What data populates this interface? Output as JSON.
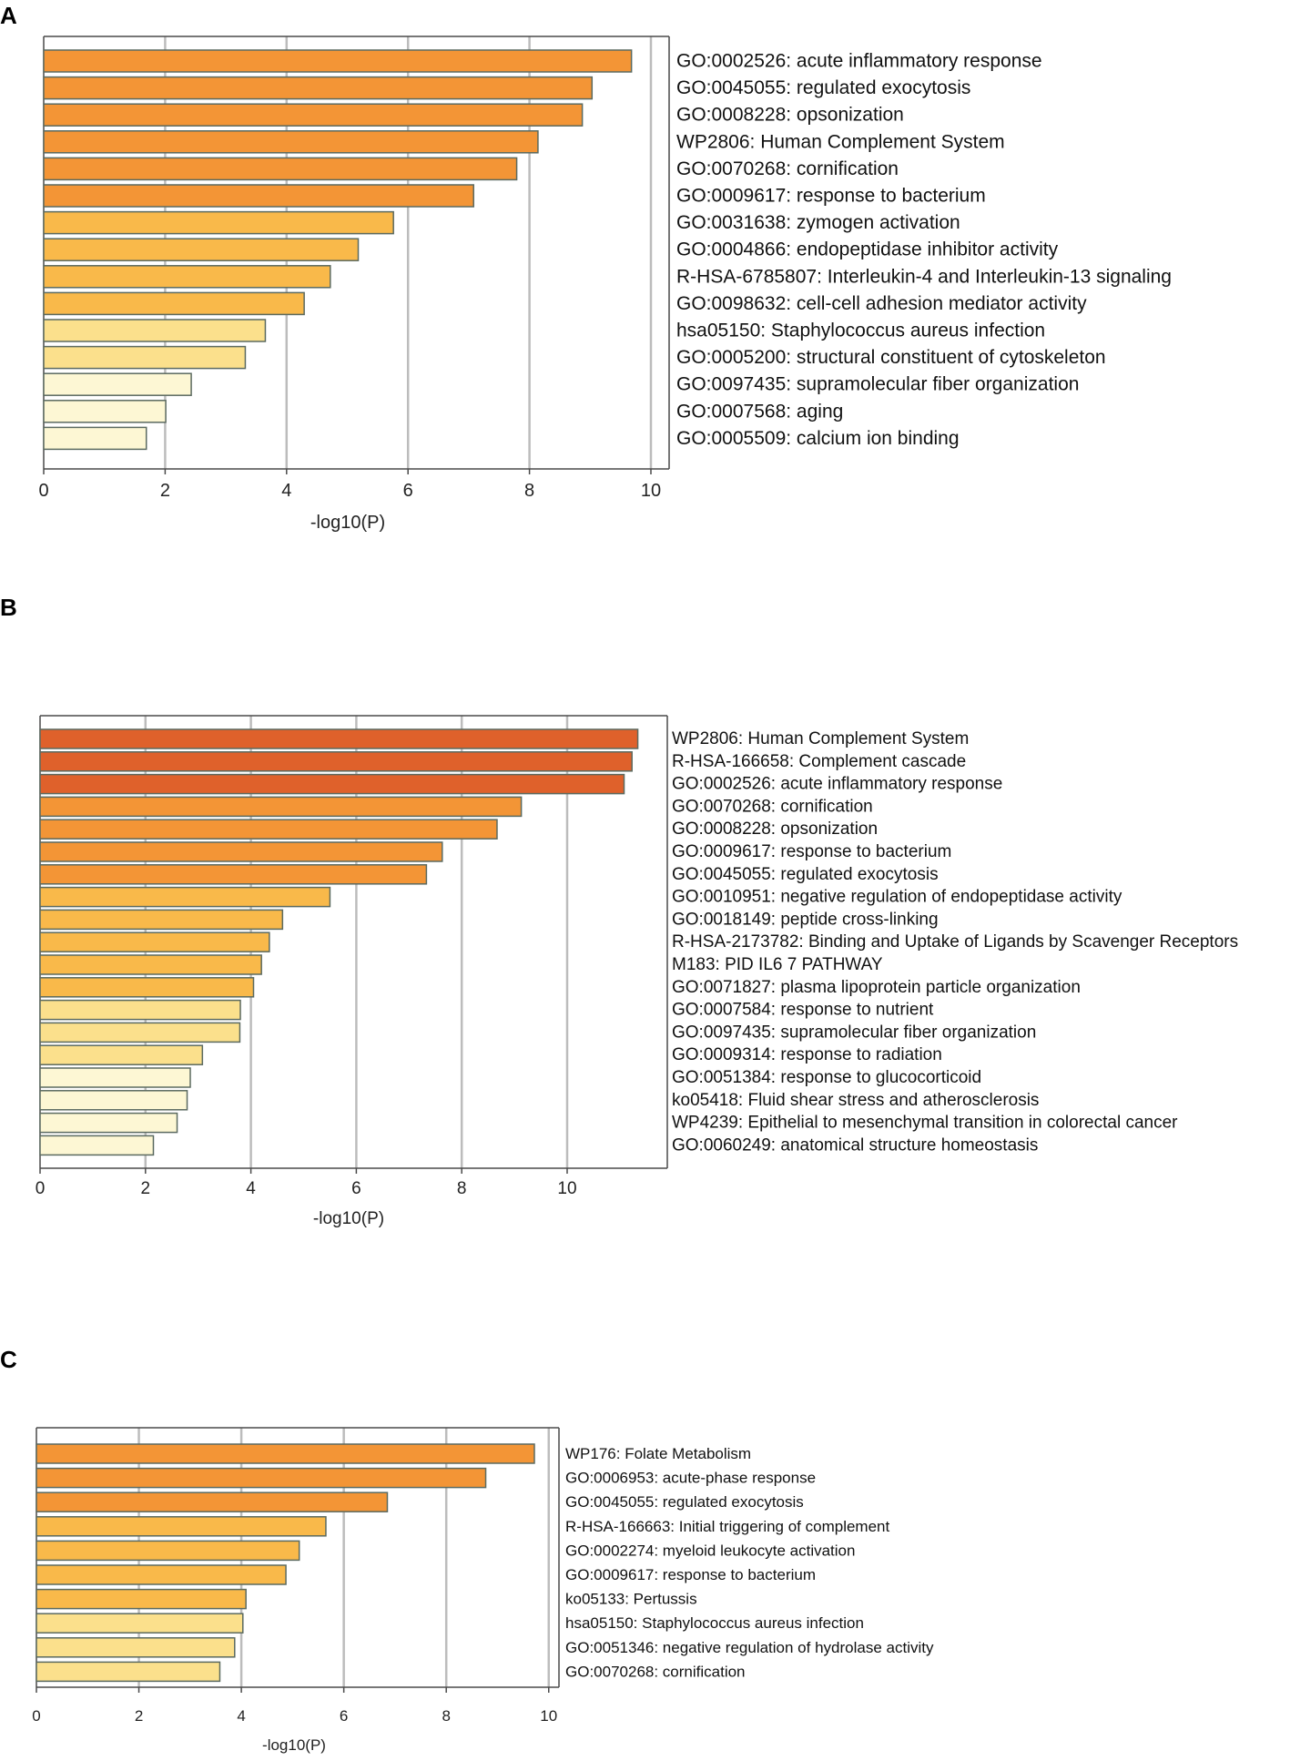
{
  "chart_data": [
    {
      "panel": "A",
      "type": "bar",
      "orientation": "horizontal",
      "xlabel": "-log10(P)",
      "xlim": [
        0,
        10.3
      ],
      "xticks": [
        0,
        2,
        4,
        6,
        8,
        10
      ],
      "grid": true,
      "categories": [
        "GO:0002526: acute inflammatory response",
        "GO:0045055: regulated exocytosis",
        "GO:0008228: opsonization",
        "WP2806: Human Complement System",
        "GO:0070268: cornification",
        "GO:0009617: response to bacterium",
        "GO:0031638: zymogen activation",
        "GO:0004866: endopeptidase inhibitor activity",
        "R-HSA-6785807: Interleukin-4 and Interleukin-13 signaling",
        "GO:0098632: cell-cell adhesion mediator activity",
        "hsa05150: Staphylococcus aureus infection",
        "GO:0005200: structural constituent of cytoskeleton",
        "GO:0097435: supramolecular fiber organization",
        "GO:0007568: aging",
        "GO:0005509: calcium ion binding"
      ],
      "values": [
        9.68,
        9.03,
        8.87,
        8.14,
        7.79,
        7.08,
        5.76,
        5.18,
        4.72,
        4.29,
        3.65,
        3.32,
        2.43,
        2.01,
        1.69
      ],
      "colors": [
        "#f39536",
        "#f39536",
        "#f39536",
        "#f39536",
        "#f39536",
        "#f39536",
        "#f9b94a",
        "#f9b94a",
        "#f9b94a",
        "#f9b94a",
        "#fbe08c",
        "#fbe08c",
        "#fdf7d4",
        "#fdf7d4",
        "#fdf7d4"
      ]
    },
    {
      "panel": "B",
      "type": "bar",
      "orientation": "horizontal",
      "xlabel": "-log10(P)",
      "xlim": [
        0,
        11.9
      ],
      "xticks": [
        0,
        2,
        4,
        6,
        8,
        10
      ],
      "grid": true,
      "categories": [
        "WP2806: Human Complement System",
        "R-HSA-166658: Complement cascade",
        "GO:0002526: acute inflammatory response",
        "GO:0070268: cornification",
        "GO:0008228: opsonization",
        "GO:0009617: response to bacterium",
        "GO:0045055: regulated exocytosis",
        "GO:0010951: negative regulation of endopeptidase activity",
        "GO:0018149: peptide cross-linking",
        "R-HSA-2173782: Binding and Uptake of Ligands by Scavenger Receptors",
        "M183: PID IL6 7 PATHWAY",
        "GO:0071827: plasma lipoprotein particle organization",
        "GO:0007584: response to nutrient",
        "GO:0097435: supramolecular fiber organization",
        "GO:0009314: response to radiation",
        "GO:0051384: response to glucocorticoid",
        "ko05418: Fluid shear stress and atherosclerosis",
        "WP4239: Epithelial to mesenchymal transition in colorectal cancer",
        "GO:0060249: anatomical structure homeostasis"
      ],
      "values": [
        11.34,
        11.23,
        11.08,
        9.13,
        8.67,
        7.63,
        7.33,
        5.5,
        4.6,
        4.35,
        4.2,
        4.05,
        3.8,
        3.79,
        3.08,
        2.85,
        2.79,
        2.6,
        2.15
      ],
      "colors": [
        "#df612b",
        "#df612b",
        "#df612b",
        "#f39536",
        "#f39536",
        "#f39536",
        "#f39536",
        "#f9b94a",
        "#f9b94a",
        "#f9b94a",
        "#f9b94a",
        "#f9b94a",
        "#fbe08c",
        "#fbe08c",
        "#fbe08c",
        "#fdf7d4",
        "#fdf7d4",
        "#fdf7d4",
        "#fdf7d4"
      ]
    },
    {
      "panel": "C",
      "type": "bar",
      "orientation": "horizontal",
      "xlabel": "-log10(P)",
      "xlim": [
        0,
        10.2
      ],
      "xticks": [
        0,
        2,
        4,
        6,
        8,
        10
      ],
      "grid": true,
      "categories": [
        "WP176: Folate Metabolism",
        "GO:0006953: acute-phase response",
        "GO:0045055: regulated exocytosis",
        "R-HSA-166663: Initial triggering of complement",
        "GO:0002274: myeloid leukocyte activation",
        "GO:0009617: response to bacterium",
        "ko05133: Pertussis",
        "hsa05150: Staphylococcus aureus infection",
        "GO:0051346: negative regulation of hydrolase activity",
        "GO:0070268: cornification"
      ],
      "values": [
        9.72,
        8.77,
        6.85,
        5.65,
        5.13,
        4.87,
        4.09,
        4.03,
        3.87,
        3.58
      ],
      "colors": [
        "#f39536",
        "#f39536",
        "#f39536",
        "#f9b94a",
        "#f9b94a",
        "#f9b94a",
        "#f9b94a",
        "#fbe08c",
        "#fbe08c",
        "#fbe08c"
      ]
    }
  ]
}
